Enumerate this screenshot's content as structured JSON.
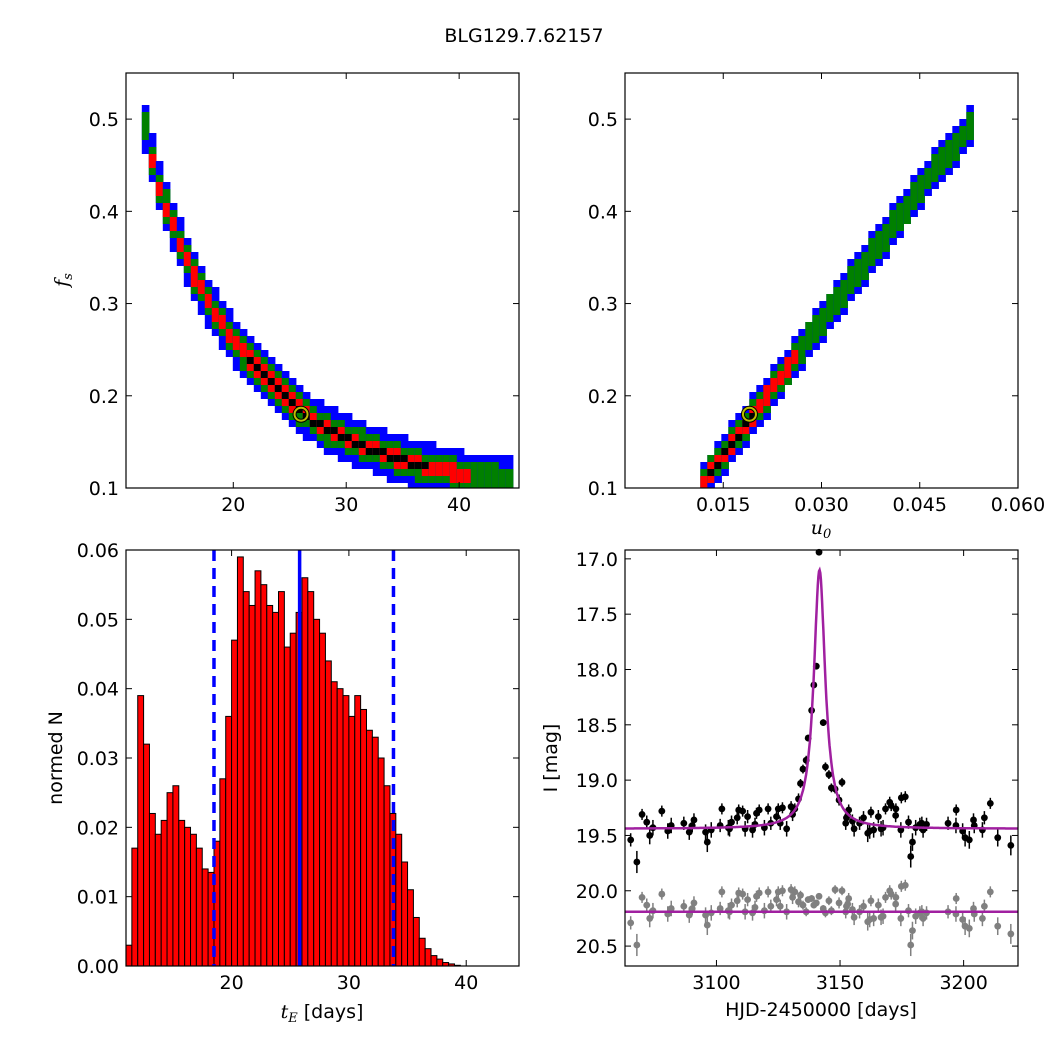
{
  "figure": {
    "title": "BLG129.7.62157"
  },
  "colors": {
    "outer_contour": "#0000ff",
    "middle_contour": "#008000",
    "inner_contour": "#ff0000",
    "core_contour": "#000000",
    "best_fit_marker": "#bfbf00",
    "hist_fill": "#ff0000",
    "median_line": "#0000ff",
    "model_curve": "#a020a0",
    "residual_points": "#808080",
    "data_points": "#000000"
  },
  "chart_data": [
    {
      "id": "tE_vs_fs",
      "type": "heatmap",
      "title": "",
      "xlabel": "",
      "ylabel_symbol": "f",
      "ylabel_sub": "s",
      "xlim": [
        10.5,
        45.3
      ],
      "ylim": [
        0.1,
        0.55
      ],
      "xticks": [
        20,
        30,
        40
      ],
      "yticks": [
        0.1,
        0.2,
        0.3,
        0.4,
        0.5
      ],
      "ytick_labels": [
        "0.1",
        "0.2",
        "0.3",
        "0.4",
        "0.5"
      ],
      "levels": [
        "core",
        "1-sigma",
        "2-sigma",
        "3-sigma"
      ],
      "band_halfwidth_fs": {
        "core": 0.003,
        "1-sigma": 0.008,
        "2-sigma": 0.016,
        "3-sigma": 0.026
      },
      "ridge": {
        "x": [
          11.9,
          13,
          14.5,
          16,
          18,
          20,
          22,
          24,
          26,
          28,
          30,
          32,
          34,
          36,
          38,
          40,
          42,
          44.3
        ],
        "y": [
          0.49,
          0.43,
          0.38,
          0.335,
          0.29,
          0.254,
          0.228,
          0.204,
          0.18,
          0.163,
          0.152,
          0.142,
          0.133,
          0.125,
          0.12,
          0.114,
          0.11,
          0.107
        ]
      },
      "core_x_range": [
        21,
        37
      ],
      "inner_x_range": [
        12,
        41
      ],
      "best_fit": {
        "x": 26,
        "y": 0.18
      }
    },
    {
      "id": "u0_vs_fs",
      "type": "heatmap",
      "xlabel_symbol": "u",
      "xlabel_sub": "0",
      "xlim": [
        0.0,
        0.06
      ],
      "ylim": [
        0.1,
        0.55
      ],
      "xticks": [
        0.015,
        0.03,
        0.045,
        0.06
      ],
      "xtick_labels": [
        "0.015",
        "0.030",
        "0.045",
        "0.060"
      ],
      "yticks": [
        0.1,
        0.2,
        0.3,
        0.4,
        0.5
      ],
      "ytick_labels": [
        "0.1",
        "0.2",
        "0.3",
        "0.4",
        "0.5"
      ],
      "band_halfwidth_fs": {
        "core": 0.004,
        "1-sigma": 0.009,
        "2-sigma": 0.015,
        "3-sigma": 0.022
      },
      "ridge": {
        "x": [
          0.0115,
          0.015,
          0.02,
          0.025,
          0.03,
          0.035,
          0.04,
          0.045,
          0.05,
          0.0525
        ],
        "y": [
          0.107,
          0.141,
          0.188,
          0.237,
          0.285,
          0.333,
          0.38,
          0.43,
          0.47,
          0.497
        ]
      },
      "core_x_range": [
        0.012,
        0.019
      ],
      "inner_x_range": [
        0.0115,
        0.026
      ],
      "best_fit": {
        "x": 0.019,
        "y": 0.18
      }
    },
    {
      "id": "tE_histogram",
      "type": "bar",
      "xlabel_symbol": "t",
      "xlabel_sub": "E",
      "xlabel_unit": " [days]",
      "ylabel": "normed N",
      "xlim": [
        11,
        44.5
      ],
      "ylim": [
        0,
        0.06
      ],
      "xticks": [
        20,
        30,
        40
      ],
      "yticks": [
        0.0,
        0.01,
        0.02,
        0.03,
        0.04,
        0.05,
        0.06
      ],
      "ytick_labels": [
        "0.00",
        "0.01",
        "0.02",
        "0.03",
        "0.04",
        "0.05",
        "0.06"
      ],
      "bin_start": 11,
      "bin_width": 0.5,
      "values": [
        0.003,
        0.017,
        0.039,
        0.032,
        0.022,
        0.019,
        0.021,
        0.025,
        0.026,
        0.021,
        0.02,
        0.019,
        0.017,
        0.014,
        0.0135,
        0.018,
        0.027,
        0.036,
        0.047,
        0.059,
        0.054,
        0.052,
        0.057,
        0.055,
        0.052,
        0.051,
        0.054,
        0.046,
        0.048,
        0.051,
        0.056,
        0.054,
        0.05,
        0.048,
        0.044,
        0.041,
        0.04,
        0.039,
        0.036,
        0.039,
        0.037,
        0.034,
        0.033,
        0.03,
        0.026,
        0.022,
        0.019,
        0.015,
        0.011,
        0.007,
        0.004,
        0.0025,
        0.0015,
        0.001,
        0.0005,
        0.0003,
        0.0001
      ],
      "median": 25.8,
      "bounds": [
        18.5,
        33.8
      ]
    },
    {
      "id": "light_curve",
      "type": "scatter",
      "xlabel": "HJD-2450000 [days]",
      "ylabel": "I [mag]",
      "xlim": [
        3063,
        3222
      ],
      "ylim": [
        20.68,
        16.92
      ],
      "xticks": [
        3100,
        3150,
        3200
      ],
      "yticks": [
        17.0,
        17.5,
        18.0,
        18.5,
        19.0,
        19.5,
        20.0,
        20.5
      ],
      "ytick_labels": [
        "17.0",
        "17.5",
        "18.0",
        "18.5",
        "19.0",
        "19.5",
        "20.0",
        "20.5"
      ],
      "model": {
        "t0": 3141.7,
        "baseline": 19.44,
        "peak": 17.1,
        "width": 2.8,
        "residual_baseline": 20.19
      },
      "points": {
        "t": [
          3065.3,
          3067.8,
          3069.9,
          3071.8,
          3073.0,
          3074.3,
          3077.9,
          3080.3,
          3081.7,
          3086.8,
          3089.0,
          3090.2,
          3090.9,
          3095.6,
          3096.3,
          3097.9,
          3101.5,
          3102.2,
          3104.8,
          3105.3,
          3106.1,
          3108.4,
          3109.0,
          3110.6,
          3111.6,
          3112.6,
          3114.6,
          3115.6,
          3116.2,
          3117.3,
          3119.4,
          3120.9,
          3122.0,
          3124.3,
          3125.0,
          3125.8,
          3126.7,
          3128.4,
          3130.2,
          3130.8,
          3131.7,
          3133.2,
          3134.0,
          3135.0,
          3136.3,
          3137.1,
          3138.5,
          3139.4,
          3140.4,
          3141.5,
          3143.2,
          3144.1,
          3145.5,
          3146.5,
          3148.0,
          3149.6,
          3150.8,
          3152.3,
          3152.6,
          3153.1,
          3153.5,
          3155.0,
          3155.7,
          3157.9,
          3159.5,
          3161.2,
          3162.0,
          3162.5,
          3163.6,
          3165.5,
          3166.6,
          3167.4,
          3168.4,
          3170.1,
          3170.7,
          3172.5,
          3172.6,
          3174.6,
          3174.8,
          3176.4,
          3177.7,
          3178.6,
          3179.3,
          3180.6,
          3182.3,
          3183.1,
          3183.6,
          3185.0,
          3193.7,
          3196.9,
          3197.0,
          3199.6,
          3200.6,
          3202.3,
          3204.0,
          3204.3,
          3207.6,
          3208.4,
          3210.8,
          3213.8,
          3219.1
        ],
        "mag": [
          19.54,
          19.74,
          19.31,
          19.38,
          19.5,
          19.43,
          19.28,
          19.46,
          19.41,
          19.39,
          19.47,
          19.41,
          19.36,
          19.47,
          19.56,
          19.45,
          19.41,
          19.26,
          19.43,
          19.44,
          19.38,
          19.34,
          19.27,
          19.28,
          19.44,
          19.33,
          19.45,
          19.4,
          19.3,
          19.27,
          19.43,
          19.26,
          19.39,
          19.33,
          19.26,
          19.39,
          19.25,
          19.44,
          19.24,
          19.31,
          19.26,
          19.17,
          19.03,
          18.9,
          18.82,
          18.62,
          18.37,
          18.14,
          17.97,
          16.94,
          18.48,
          18.88,
          18.95,
          19.07,
          19.08,
          19.18,
          19.02,
          19.39,
          19.34,
          19.32,
          19.27,
          19.37,
          19.44,
          19.39,
          19.34,
          19.48,
          19.46,
          19.29,
          19.45,
          19.33,
          19.44,
          19.43,
          19.26,
          19.2,
          19.23,
          19.32,
          19.26,
          19.45,
          19.16,
          19.15,
          19.38,
          19.69,
          19.56,
          19.43,
          19.4,
          19.39,
          19.45,
          19.4,
          19.39,
          19.41,
          19.27,
          19.46,
          19.52,
          19.54,
          19.36,
          19.41,
          19.45,
          19.34,
          19.21,
          19.52,
          19.59
        ],
        "residual": [
          20.29,
          20.49,
          20.06,
          20.13,
          20.25,
          20.18,
          20.03,
          20.21,
          20.16,
          20.14,
          20.22,
          20.16,
          20.11,
          20.22,
          20.31,
          20.2,
          20.16,
          20.01,
          20.18,
          20.19,
          20.13,
          20.09,
          20.02,
          20.03,
          20.19,
          20.08,
          20.2,
          20.15,
          20.05,
          20.02,
          20.18,
          20.01,
          20.14,
          20.08,
          20.01,
          20.14,
          20.0,
          20.19,
          19.99,
          20.06,
          20.01,
          20.1,
          20.04,
          20.13,
          20.19,
          20.08,
          20.07,
          20.13,
          20.11,
          20.05,
          20.16,
          20.2,
          20.09,
          20.18,
          19.99,
          20.11,
          20.0,
          20.19,
          20.14,
          20.12,
          20.07,
          20.17,
          20.24,
          20.19,
          20.14,
          20.28,
          20.26,
          20.09,
          20.25,
          20.13,
          20.24,
          20.23,
          20.06,
          20.0,
          20.03,
          20.12,
          20.06,
          20.25,
          19.96,
          19.95,
          20.18,
          20.49,
          20.36,
          20.23,
          20.2,
          20.19,
          20.25,
          20.2,
          20.19,
          20.21,
          20.07,
          20.26,
          20.32,
          20.34,
          20.16,
          20.21,
          20.25,
          20.14,
          20.01,
          20.32,
          20.39
        ],
        "err": [
          0.06,
          0.1,
          0.05,
          0.06,
          0.08,
          0.07,
          0.05,
          0.07,
          0.07,
          0.06,
          0.07,
          0.06,
          0.06,
          0.07,
          0.09,
          0.07,
          0.06,
          0.05,
          0.07,
          0.07,
          0.06,
          0.06,
          0.05,
          0.05,
          0.07,
          0.06,
          0.07,
          0.06,
          0.05,
          0.05,
          0.07,
          0.05,
          0.06,
          0.06,
          0.05,
          0.06,
          0.05,
          0.07,
          0.05,
          0.06,
          0.05,
          0.05,
          0.04,
          0.04,
          0.04,
          0.03,
          0.03,
          0.03,
          0.02,
          0.02,
          0.03,
          0.04,
          0.04,
          0.04,
          0.04,
          0.05,
          0.04,
          0.06,
          0.06,
          0.05,
          0.05,
          0.06,
          0.07,
          0.06,
          0.06,
          0.08,
          0.07,
          0.05,
          0.07,
          0.06,
          0.07,
          0.07,
          0.05,
          0.05,
          0.05,
          0.06,
          0.05,
          0.07,
          0.05,
          0.05,
          0.06,
          0.1,
          0.08,
          0.07,
          0.06,
          0.06,
          0.07,
          0.06,
          0.06,
          0.07,
          0.05,
          0.07,
          0.08,
          0.08,
          0.06,
          0.07,
          0.07,
          0.06,
          0.05,
          0.08,
          0.09
        ]
      }
    }
  ]
}
